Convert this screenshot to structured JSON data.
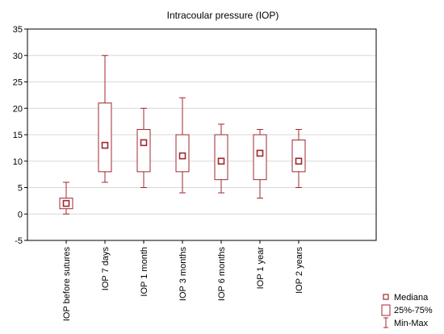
{
  "chart_data": {
    "type": "box",
    "title": "Intracoular pressure (IOP)",
    "xlabel": "",
    "ylabel": "",
    "ylim": [
      -5,
      35
    ],
    "yticks": [
      -5,
      0,
      5,
      10,
      15,
      20,
      25,
      30,
      35
    ],
    "grid": true,
    "legend_position": "bottom-right",
    "colors": {
      "box": "#a02830",
      "grid": "#d8d8d8",
      "axis": "#000000"
    },
    "categories": [
      "IOP before sutures",
      "IOP 7 days",
      "IOP 1 month",
      "IOP 3 months",
      "IOP 6 months",
      "IOP 1 year",
      "IOP 2 years"
    ],
    "median": [
      2,
      13,
      13.5,
      11,
      10,
      11.5,
      10
    ],
    "q1": [
      1,
      8,
      8,
      8,
      6.5,
      6.5,
      8
    ],
    "q3": [
      3,
      21,
      16,
      15,
      15,
      15,
      14
    ],
    "min": [
      0,
      6,
      5,
      4,
      4,
      3,
      5
    ],
    "max": [
      6,
      30,
      20,
      22,
      17,
      16,
      16
    ],
    "legend": [
      {
        "symbol": "median-square",
        "label": "Mediana"
      },
      {
        "symbol": "box",
        "label": "25%-75%"
      },
      {
        "symbol": "whisker",
        "label": "Min-Max"
      }
    ]
  }
}
